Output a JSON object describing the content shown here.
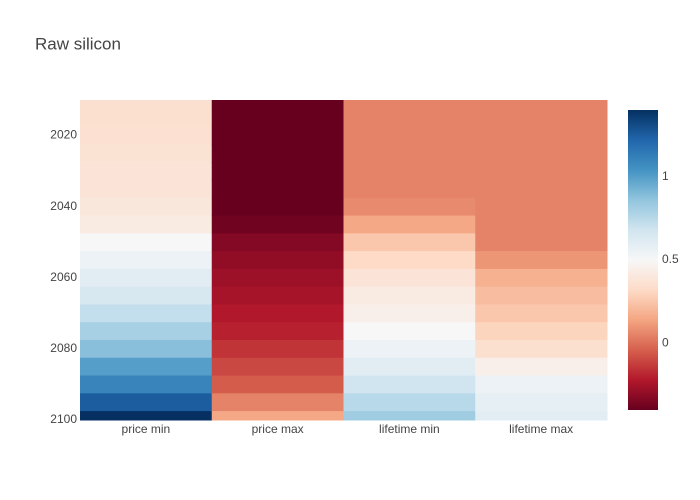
{
  "chart_data": {
    "type": "heatmap",
    "title": "Raw silicon",
    "categories": [
      "price min",
      "price max",
      "lifetime min",
      "lifetime max"
    ],
    "y": [
      2010,
      2015,
      2020,
      2025,
      2030,
      2035,
      2040,
      2045,
      2050,
      2055,
      2060,
      2065,
      2070,
      2075,
      2080,
      2085,
      2090,
      2095,
      2100
    ],
    "z": [
      [
        0.35,
        0.35,
        0.36,
        0.37,
        0.38,
        0.38,
        0.4,
        0.42,
        0.5,
        0.55,
        0.6,
        0.65,
        0.72,
        0.8,
        0.88,
        1.0,
        1.1,
        1.25,
        1.4
      ],
      [
        -0.4,
        -0.4,
        -0.4,
        -0.4,
        -0.4,
        -0.4,
        -0.4,
        -0.38,
        -0.33,
        -0.3,
        -0.27,
        -0.25,
        -0.22,
        -0.2,
        -0.15,
        -0.1,
        -0.05,
        0.05,
        0.15
      ],
      [
        0.05,
        0.05,
        0.05,
        0.05,
        0.05,
        0.05,
        0.07,
        0.15,
        0.25,
        0.32,
        0.38,
        0.42,
        0.45,
        0.5,
        0.55,
        0.6,
        0.68,
        0.75,
        0.82
      ],
      [
        0.05,
        0.05,
        0.05,
        0.05,
        0.05,
        0.05,
        0.05,
        0.05,
        0.05,
        0.1,
        0.18,
        0.22,
        0.25,
        0.3,
        0.35,
        0.45,
        0.55,
        0.58,
        0.6
      ]
    ],
    "ylim": [
      2010,
      2100
    ],
    "yticks": [
      2020,
      2040,
      2060,
      2080,
      2100
    ],
    "yreversed": true,
    "zlim": [
      -0.4,
      1.4
    ],
    "zticks": [
      0,
      0.5,
      1
    ],
    "colorscale": [
      "#67001f",
      "#b2182b",
      "#d6604d",
      "#f4a582",
      "#fddbc7",
      "#f7f7f7",
      "#d1e5f0",
      "#92c5de",
      "#4393c3",
      "#2166ac",
      "#053061"
    ]
  }
}
